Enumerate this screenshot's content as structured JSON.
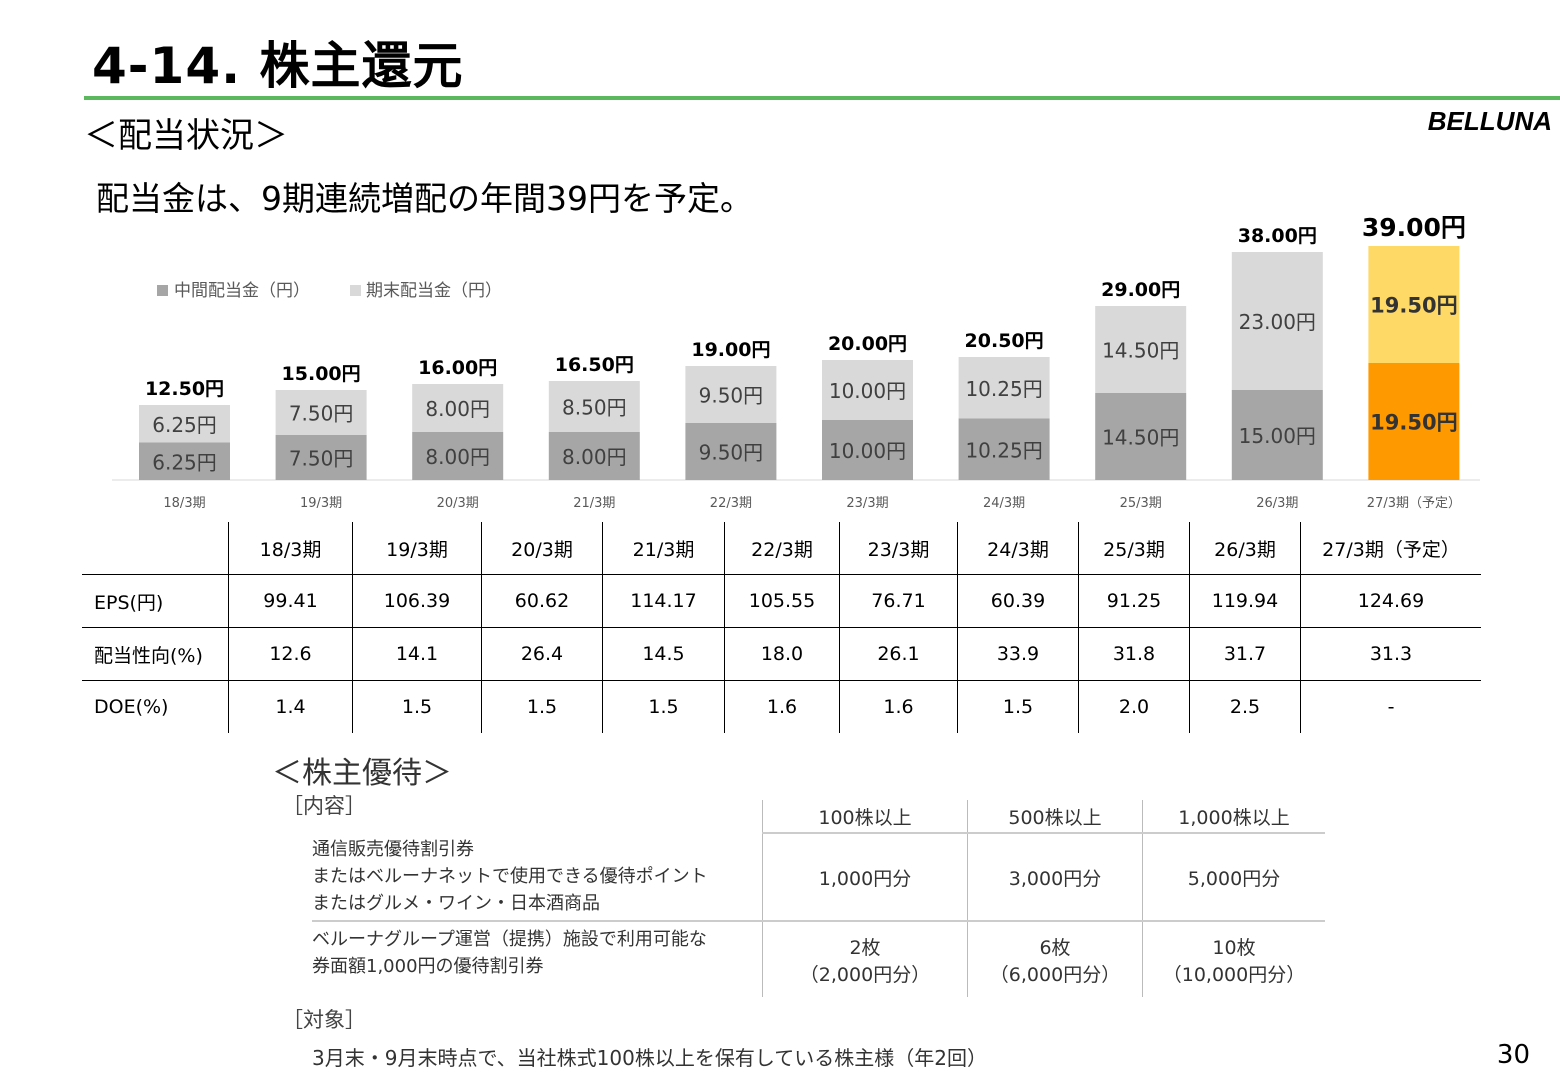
{
  "header": {
    "title": "4-14. 株主還元",
    "section": "＜配当状況＞",
    "logo": "BELLUNA",
    "headline": "配当金は、9期連続増配の年間39円を予定。"
  },
  "chart_data": {
    "type": "bar",
    "stacked": true,
    "categories": [
      "18/3期",
      "19/3期",
      "20/3期",
      "21/3期",
      "22/3期",
      "23/3期",
      "24/3期",
      "25/3期",
      "26/3期",
      "27/3期（予定）"
    ],
    "series": [
      {
        "name": "中間配当金（円）",
        "values": [
          6.25,
          7.5,
          8.0,
          8.0,
          9.5,
          10.0,
          10.25,
          14.5,
          15.0,
          19.5
        ],
        "labels": [
          "6.25円",
          "7.50円",
          "8.00円",
          "8.00円",
          "9.50円",
          "10.00円",
          "10.25円",
          "14.50円",
          "15.00円",
          "19.50円"
        ]
      },
      {
        "name": "期末配当金（円）",
        "values": [
          6.25,
          7.5,
          8.0,
          8.5,
          9.5,
          10.0,
          10.25,
          14.5,
          23.0,
          19.5
        ],
        "labels": [
          "6.25円",
          "7.50円",
          "8.00円",
          "8.50円",
          "9.50円",
          "10.00円",
          "10.25円",
          "14.50円",
          "23.00円",
          "19.50円"
        ]
      }
    ],
    "totals": [
      12.5,
      15.0,
      16.0,
      16.5,
      19.0,
      20.0,
      20.5,
      29.0,
      38.0,
      39.0
    ],
    "total_labels": [
      "12.50円",
      "15.00円",
      "16.00円",
      "16.50円",
      "19.00円",
      "20.00円",
      "20.50円",
      "29.00円",
      "38.00円",
      "39.00円"
    ],
    "legend_position": "top-left",
    "colors": {
      "interim": "#a6a6a6",
      "final": "#d9d9d9",
      "forecast_interim": "#ff9900",
      "forecast_final": "#ffd966"
    }
  },
  "table": {
    "headers": [
      "18/3期",
      "19/3期",
      "20/3期",
      "21/3期",
      "22/3期",
      "23/3期",
      "24/3期",
      "25/3期",
      "26/3期",
      "27/3期（予定）"
    ],
    "rows": [
      {
        "label": "EPS(円)",
        "values": [
          "99.41",
          "106.39",
          "60.62",
          "114.17",
          "105.55",
          "76.71",
          "60.39",
          "91.25",
          "119.94",
          "124.69"
        ]
      },
      {
        "label": "配当性向(%)",
        "values": [
          "12.6",
          "14.1",
          "26.4",
          "14.5",
          "18.0",
          "26.1",
          "33.9",
          "31.8",
          "31.7",
          "31.3"
        ]
      },
      {
        "label": "DOE(%)",
        "values": [
          "1.4",
          "1.5",
          "1.5",
          "1.5",
          "1.6",
          "1.6",
          "1.5",
          "2.0",
          "2.5",
          "-"
        ]
      }
    ]
  },
  "benefits": {
    "title": "＜株主優待＞",
    "content_label": "［内容］",
    "columns": [
      "100株以上",
      "500株以上",
      "1,000株以上"
    ],
    "items": [
      {
        "lines": [
          "通信販売優待割引券",
          "またはベルーナネットで使用できる優待ポイント",
          "またはグルメ・ワイン・日本酒商品"
        ],
        "values": [
          "1,000円分",
          "3,000円分",
          "5,000円分"
        ]
      },
      {
        "lines": [
          "ベルーナグループ運営（提携）施設で利用可能な",
          "券面額1,000円の優待割引券"
        ],
        "values": [
          [
            "2枚",
            "（2,000円分）"
          ],
          [
            "6枚",
            "（6,000円分）"
          ],
          [
            "10枚",
            "（10,000円分）"
          ]
        ]
      }
    ],
    "target_label": "［対象］",
    "target_text": "3月末・9月末時点で、当社株式100株以上を保有している株主様（年2回）"
  },
  "page_number": "30"
}
